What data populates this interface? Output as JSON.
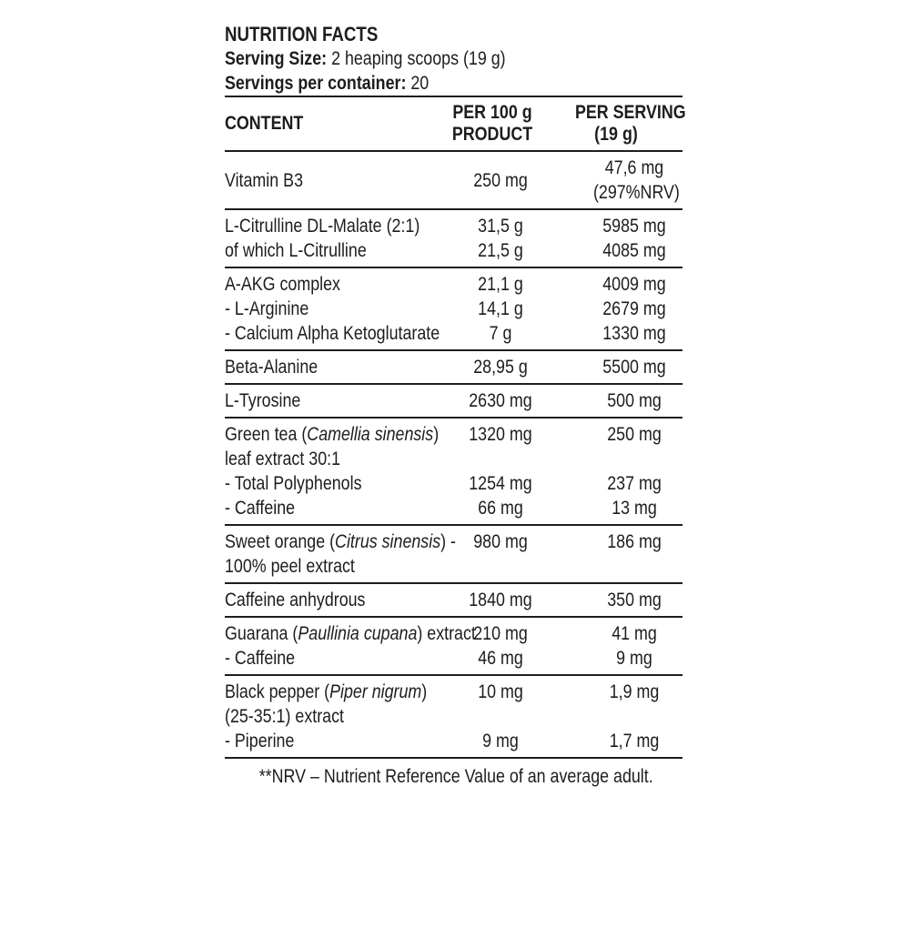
{
  "colors": {
    "background": "#ffffff",
    "text": "#1d1d1b",
    "rule": "#1d1d1b"
  },
  "header": {
    "title": "NUTRITION FACTS",
    "serving_size_label": "Serving Size:",
    "serving_size_value": " 2 heaping scoops (19 g)",
    "servings_label": "Servings per container:",
    "servings_value": " 20"
  },
  "table": {
    "headers": {
      "content": "CONTENT",
      "per100": [
        "PER 100 g",
        "PRODUCT"
      ],
      "serving": [
        "PER SERVING",
        "(19 g)"
      ]
    },
    "rows": [
      {
        "name_lines": [
          "Vitamin B3"
        ],
        "per100": [
          "250 mg"
        ],
        "serving": [
          "47,6 mg",
          "(297%NRV**)"
        ]
      },
      {
        "name_lines": [
          "L-Citrulline DL-Malate (2:1)",
          "of which L-Citrulline"
        ],
        "per100": [
          "31,5 g",
          "21,5 g"
        ],
        "serving": [
          "5985 mg",
          "4085 mg"
        ]
      },
      {
        "name_lines": [
          "A-AKG complex",
          "- L-Arginine",
          "- Calcium Alpha Ketoglutarate"
        ],
        "per100": [
          "21,1 g",
          "14,1 g",
          "7 g"
        ],
        "serving": [
          "4009 mg",
          "2679 mg",
          "1330 mg"
        ]
      },
      {
        "name_lines": [
          "Beta-Alanine"
        ],
        "per100": [
          "28,95 g"
        ],
        "serving": [
          "5500 mg"
        ]
      },
      {
        "name_lines": [
          "L-Tyrosine"
        ],
        "per100": [
          "2630 mg"
        ],
        "serving": [
          "500 mg"
        ]
      },
      {
        "name_lines": [
          "Green tea (*Camellia sinensis*)",
          "leaf extract 30:1",
          "- Total Polyphenols",
          "- Caffeine"
        ],
        "per100": [
          "1320 mg",
          "",
          "1254 mg",
          "66 mg"
        ],
        "serving": [
          "250 mg",
          "",
          "237 mg",
          "13 mg"
        ]
      },
      {
        "name_lines": [
          "Sweet orange (*Citrus sinensis*) -",
          "100% peel extract"
        ],
        "per100": [
          "980 mg",
          ""
        ],
        "serving": [
          "186 mg",
          ""
        ]
      },
      {
        "name_lines": [
          "Caffeine anhydrous"
        ],
        "per100": [
          "1840 mg"
        ],
        "serving": [
          "350 mg"
        ]
      },
      {
        "name_lines": [
          "Guarana (*Paullinia cupana*) extract",
          "- Caffeine"
        ],
        "per100": [
          "210 mg",
          "46 mg"
        ],
        "serving": [
          "41 mg",
          "9 mg"
        ]
      },
      {
        "name_lines": [
          "Black pepper (*Piper nigrum*)",
          "(25-35:1) extract",
          "- Piperine"
        ],
        "per100": [
          "10 mg",
          "",
          "9 mg"
        ],
        "serving": [
          "1,9 mg",
          "",
          "1,7 mg"
        ]
      }
    ]
  },
  "footnote": "**NRV – Nutrient Reference Value of an average adult."
}
